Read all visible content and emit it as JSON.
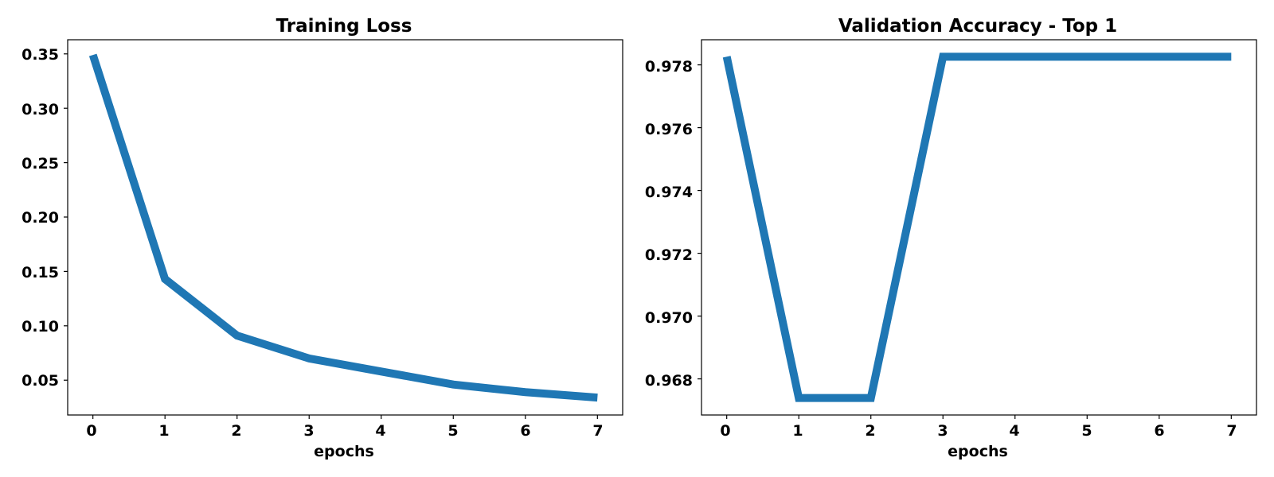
{
  "chart_data": [
    {
      "type": "line",
      "title": "Training Loss",
      "xlabel": "epochs",
      "ylabel": "",
      "x": [
        0,
        1,
        2,
        3,
        4,
        5,
        6,
        7
      ],
      "series": [
        {
          "values": [
            0.349,
            0.143,
            0.091,
            0.07,
            0.058,
            0.046,
            0.039,
            0.034
          ]
        }
      ],
      "xlim": [
        -0.35,
        7.35
      ],
      "ylim": [
        0.018,
        0.363
      ],
      "xticks": [
        "0",
        "1",
        "2",
        "3",
        "4",
        "5",
        "6",
        "7"
      ],
      "yticks": [
        "0.05",
        "0.10",
        "0.15",
        "0.20",
        "0.25",
        "0.30",
        "0.35"
      ],
      "grid": false,
      "color": "#1f77b4"
    },
    {
      "type": "line",
      "title": "Validation Accuracy - Top 1",
      "xlabel": "epochs",
      "ylabel": "",
      "x": [
        0,
        1,
        2,
        3,
        4,
        5,
        6,
        7
      ],
      "series": [
        {
          "values": [
            0.97826,
            0.96739,
            0.96739,
            0.97826,
            0.97826,
            0.97826,
            0.97826,
            0.97826
          ]
        }
      ],
      "xlim": [
        -0.35,
        7.35
      ],
      "ylim": [
        0.96685,
        0.9788
      ],
      "xticks": [
        "0",
        "1",
        "2",
        "3",
        "4",
        "5",
        "6",
        "7"
      ],
      "yticks": [
        "0.968",
        "0.970",
        "0.972",
        "0.974",
        "0.976",
        "0.978"
      ],
      "grid": false,
      "color": "#1f77b4"
    }
  ]
}
